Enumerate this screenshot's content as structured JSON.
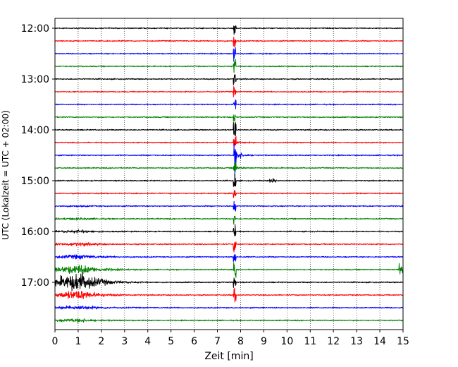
{
  "chart_data": {
    "type": "line",
    "xlabel": "Zeit  [min]",
    "ylabel": "UTC (Lokalzeit = UTC + 02:00)",
    "xlim": [
      0,
      15
    ],
    "x_ticks": [
      0,
      1,
      2,
      3,
      4,
      5,
      6,
      7,
      8,
      9,
      10,
      11,
      12,
      13,
      14,
      15
    ],
    "y_tick_labels": [
      "12:00",
      "13:00",
      "14:00",
      "15:00",
      "16:00",
      "17:00"
    ],
    "y_tick_trace_index": [
      0,
      4,
      8,
      12,
      16,
      20
    ],
    "trace_interval_minutes": 15,
    "first_trace_start": "12:00",
    "trace_count": 24,
    "trace_color_cycle": [
      "#000000",
      "#ff0000",
      "#0000ff",
      "#008000"
    ],
    "x_grid": "dotted",
    "events": [
      {
        "description": "sharp spike crossing many traces",
        "x_min": 7.75,
        "trace_start": 0,
        "trace_end": 21,
        "peak_trace": 10,
        "color": "#ff0000"
      },
      {
        "description": "large disturbance",
        "x_min_start": 0,
        "x_min_peak": 1.1,
        "x_min_end": 4.0,
        "trace_start": 14,
        "trace_end": 24,
        "peak_trace": 20,
        "color": "#000000"
      },
      {
        "description": "small burst",
        "x_min": 9.4,
        "trace": 12,
        "color": "#000000"
      },
      {
        "description": "edge spike",
        "x_min": 14.9,
        "trace": 19,
        "color": "#008000"
      }
    ]
  }
}
